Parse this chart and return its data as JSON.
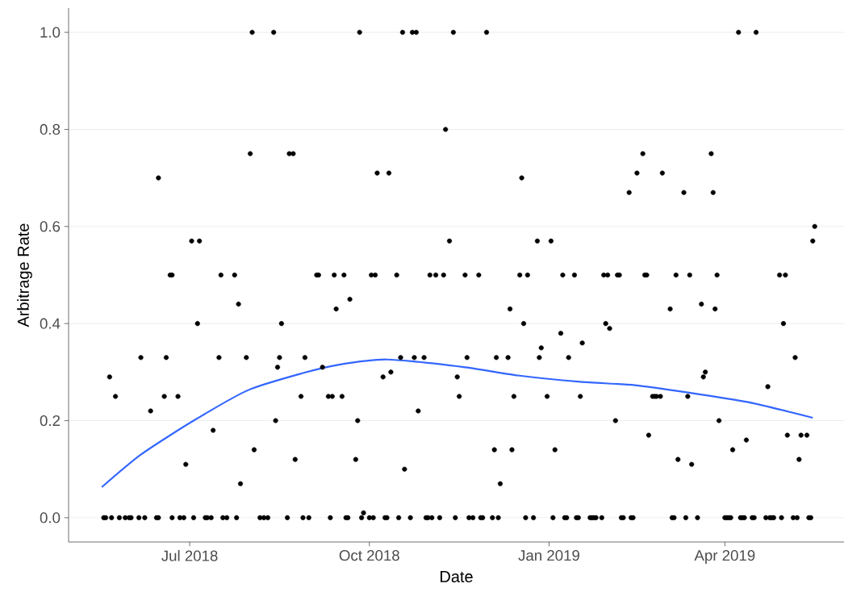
{
  "chart_data": {
    "type": "scatter",
    "xlabel": "Date",
    "ylabel": "Arbitrage Rate",
    "xlim": [
      "2018-04-30",
      "2019-06-01"
    ],
    "ylim": [
      -0.05,
      1.05
    ],
    "xticks": [
      {
        "value": "2018-07-01",
        "label": "Jul 2018"
      },
      {
        "value": "2018-10-01",
        "label": "Oct 2018"
      },
      {
        "value": "2019-01-01",
        "label": "Jan 2019"
      },
      {
        "value": "2019-04-01",
        "label": "Apr 2019"
      }
    ],
    "yticks": [
      {
        "value": 0,
        "label": "0.0"
      },
      {
        "value": 0.2,
        "label": "0.2"
      },
      {
        "value": 0.4,
        "label": "0.4"
      },
      {
        "value": 0.6,
        "label": "0.6"
      },
      {
        "value": 0.8,
        "label": "0.8"
      },
      {
        "value": 1,
        "label": "1.0"
      }
    ],
    "grid": "y",
    "series": [
      {
        "type": "scatter",
        "color": "#000000",
        "marker": "circle",
        "x": [
          "2018-05-18",
          "2018-05-19",
          "2018-05-21",
          "2018-05-22",
          "2018-05-24",
          "2018-05-26",
          "2018-05-29",
          "2018-05-31",
          "2018-06-01",
          "2018-06-05",
          "2018-06-06",
          "2018-06-08",
          "2018-06-11",
          "2018-06-14",
          "2018-06-15",
          "2018-06-15",
          "2018-06-18",
          "2018-06-19",
          "2018-06-21",
          "2018-06-22",
          "2018-06-22",
          "2018-06-25",
          "2018-06-26",
          "2018-06-28",
          "2018-06-29",
          "2018-07-02",
          "2018-07-03",
          "2018-07-05",
          "2018-07-06",
          "2018-07-09",
          "2018-07-10",
          "2018-07-12",
          "2018-07-13",
          "2018-07-16",
          "2018-07-17",
          "2018-07-18",
          "2018-07-20",
          "2018-07-24",
          "2018-07-25",
          "2018-07-26",
          "2018-07-27",
          "2018-07-30",
          "2018-08-01",
          "2018-08-02",
          "2018-08-03",
          "2018-08-06",
          "2018-08-08",
          "2018-08-10",
          "2018-08-13",
          "2018-08-14",
          "2018-08-15",
          "2018-08-16",
          "2018-08-17",
          "2018-08-20",
          "2018-08-21",
          "2018-08-23",
          "2018-08-24",
          "2018-08-27",
          "2018-08-28",
          "2018-08-29",
          "2018-08-31",
          "2018-09-04",
          "2018-09-05",
          "2018-09-07",
          "2018-09-10",
          "2018-09-11",
          "2018-09-12",
          "2018-09-13",
          "2018-09-14",
          "2018-09-17",
          "2018-09-18",
          "2018-09-19",
          "2018-09-20",
          "2018-09-21",
          "2018-09-24",
          "2018-09-25",
          "2018-09-26",
          "2018-09-27",
          "2018-09-28",
          "2018-10-01",
          "2018-10-02",
          "2018-10-03",
          "2018-10-04",
          "2018-10-05",
          "2018-10-08",
          "2018-10-09",
          "2018-10-10",
          "2018-10-11",
          "2018-10-12",
          "2018-10-15",
          "2018-10-16",
          "2018-10-17",
          "2018-10-18",
          "2018-10-19",
          "2018-10-22",
          "2018-10-23",
          "2018-10-24",
          "2018-10-25",
          "2018-10-26",
          "2018-10-29",
          "2018-10-30",
          "2018-10-31",
          "2018-11-01",
          "2018-11-02",
          "2018-11-04",
          "2018-11-06",
          "2018-11-08",
          "2018-11-09",
          "2018-11-11",
          "2018-11-13",
          "2018-11-14",
          "2018-11-15",
          "2018-11-16",
          "2018-11-19",
          "2018-11-20",
          "2018-11-21",
          "2018-11-23",
          "2018-11-26",
          "2018-11-27",
          "2018-11-28",
          "2018-11-30",
          "2018-12-03",
          "2018-12-04",
          "2018-12-05",
          "2018-12-06",
          "2018-12-07",
          "2018-12-11",
          "2018-12-12",
          "2018-12-13",
          "2018-12-14",
          "2018-12-17",
          "2018-12-18",
          "2018-12-19",
          "2018-12-20",
          "2018-12-21",
          "2018-12-24",
          "2018-12-26",
          "2018-12-27",
          "2018-12-28",
          "2018-12-31",
          "2019-01-02",
          "2019-01-03",
          "2019-01-04",
          "2019-01-07",
          "2019-01-08",
          "2019-01-09",
          "2019-01-10",
          "2019-01-11",
          "2019-01-14",
          "2019-01-15",
          "2019-01-16",
          "2019-01-17",
          "2019-01-18",
          "2019-01-22",
          "2019-01-23",
          "2019-01-24",
          "2019-01-25",
          "2019-01-28",
          "2019-01-29",
          "2019-01-30",
          "2019-01-31",
          "2019-02-01",
          "2019-02-04",
          "2019-02-05",
          "2019-02-06",
          "2019-02-07",
          "2019-02-08",
          "2019-02-11",
          "2019-02-12",
          "2019-02-13",
          "2019-02-15",
          "2019-02-18",
          "2019-02-19",
          "2019-02-20",
          "2019-02-21",
          "2019-02-23",
          "2019-02-24",
          "2019-02-25",
          "2019-02-27",
          "2019-02-28",
          "2019-03-04",
          "2019-03-05",
          "2019-03-06",
          "2019-03-07",
          "2019-03-08",
          "2019-03-11",
          "2019-03-12",
          "2019-03-13",
          "2019-03-14",
          "2019-03-15",
          "2019-03-18",
          "2019-03-20",
          "2019-03-21",
          "2019-03-22",
          "2019-03-25",
          "2019-03-26",
          "2019-03-27",
          "2019-03-28",
          "2019-03-29",
          "2019-04-01",
          "2019-04-02",
          "2019-04-03",
          "2019-04-04",
          "2019-04-05",
          "2019-04-08",
          "2019-04-09",
          "2019-04-10",
          "2019-04-11",
          "2019-04-12",
          "2019-04-15",
          "2019-04-16",
          "2019-04-17",
          "2019-04-22",
          "2019-04-23",
          "2019-04-24",
          "2019-04-25",
          "2019-04-26",
          "2019-04-29",
          "2019-04-30",
          "2019-05-01",
          "2019-05-02",
          "2019-05-03",
          "2019-05-06",
          "2019-05-07",
          "2019-05-08",
          "2019-05-09",
          "2019-05-10",
          "2019-05-13",
          "2019-05-14",
          "2019-05-15",
          "2019-05-16",
          "2019-05-17"
        ],
        "values": [
          0,
          0,
          0.29,
          0,
          0.25,
          0,
          0,
          0,
          0,
          0,
          0.33,
          0,
          0.22,
          0,
          0,
          0.7,
          0.25,
          0.33,
          0.5,
          0.5,
          0,
          0.25,
          0,
          0,
          0.11,
          0.57,
          0,
          0.4,
          0.57,
          0,
          0,
          0,
          0.18,
          0.33,
          0.5,
          0,
          0,
          0.5,
          0,
          0.44,
          0.07,
          0.33,
          0.75,
          1,
          0.14,
          0,
          0,
          0,
          1,
          0.2,
          0.31,
          0.33,
          0.4,
          0,
          0.75,
          0.75,
          0.12,
          0.25,
          0,
          0.33,
          0,
          0.5,
          0.5,
          0.31,
          0.25,
          0,
          0.25,
          0.5,
          0.43,
          0.25,
          0.5,
          0,
          0,
          0.45,
          0.12,
          0.2,
          1,
          0,
          0.01,
          0,
          0.5,
          0,
          0.5,
          0.71,
          0.29,
          0,
          0,
          0.71,
          0.3,
          0.5,
          0,
          0.33,
          1,
          0.1,
          0,
          1,
          0.33,
          1,
          0.22,
          0.33,
          0,
          0,
          0.5,
          0,
          0.5,
          0,
          0.5,
          0.8,
          0.57,
          1,
          0,
          0.29,
          0.25,
          0.5,
          0.33,
          0,
          0,
          0.5,
          0,
          0,
          1,
          0,
          0.14,
          0.33,
          0,
          0.07,
          0.33,
          0.43,
          0.14,
          0.25,
          0.5,
          0.7,
          0.4,
          0,
          0.5,
          0,
          0.57,
          0.33,
          0.35,
          0.25,
          0.57,
          0,
          0.14,
          0.38,
          0.5,
          0,
          0,
          0.33,
          0.5,
          0,
          0,
          0.25,
          0.36,
          0,
          0,
          0,
          0,
          0,
          0.5,
          0.4,
          0.5,
          0.39,
          0.2,
          0.5,
          0.5,
          0,
          0,
          0.67,
          0,
          0,
          0.71,
          0.75,
          0.5,
          0.5,
          0.17,
          0.25,
          0.25,
          0.25,
          0.25,
          0.71,
          0.43,
          0,
          0,
          0.5,
          0.12,
          0.67,
          0,
          0.25,
          0.5,
          0.11,
          0,
          0.44,
          0.29,
          0.3,
          0.75,
          0.67,
          0.43,
          0.5,
          0.2,
          0,
          0,
          0,
          0,
          0.14,
          1,
          0,
          0,
          0,
          0.16,
          0,
          0,
          1,
          0,
          0.27,
          0,
          0,
          0,
          0.5,
          0,
          0.4,
          0.5,
          0.17,
          0,
          0.33,
          0,
          0.12,
          0.17,
          0.17,
          0,
          0,
          0.57,
          0.6
        ]
      },
      {
        "type": "line",
        "color": "#3366ff",
        "marker": "none",
        "line_style": "solid",
        "x": [
          "2018-05-17",
          "2018-06-06",
          "2018-07-03",
          "2018-07-31",
          "2018-08-28",
          "2018-09-15",
          "2018-10-10",
          "2018-11-19",
          "2018-12-16",
          "2019-01-17",
          "2019-02-14",
          "2019-03-13",
          "2019-04-13",
          "2019-05-16"
        ],
        "values": [
          0.063,
          0.13,
          0.2,
          0.263,
          0.298,
          0.315,
          0.326,
          0.31,
          0.293,
          0.28,
          0.273,
          0.258,
          0.238,
          0.206
        ]
      }
    ]
  }
}
